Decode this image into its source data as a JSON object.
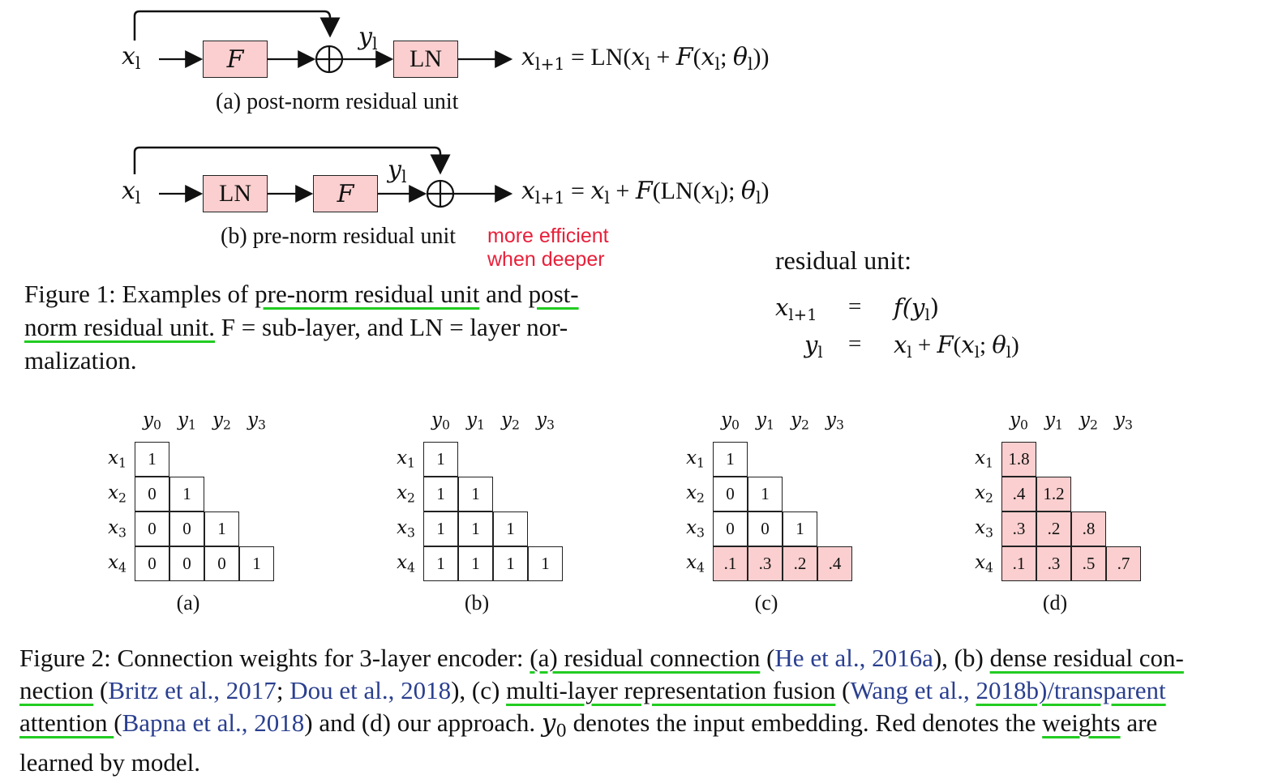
{
  "fig1": {
    "a": {
      "input": "x",
      "input_sub": "l",
      "box1": "F",
      "plus": "⊕",
      "y_label": "y",
      "y_sub": "l",
      "box2": "LN",
      "eq_lhs": "x",
      "eq_lhs_sub": "l+1",
      "eq_rhs": "= LN(x",
      "eq_rhs2": " + F(x",
      "eq_rhs3": "; θ",
      "eq_rhs4": "))",
      "caption": "(a) post-norm residual unit"
    },
    "b": {
      "input": "x",
      "input_sub": "l",
      "box1": "LN",
      "box2": "F",
      "plus": "⊕",
      "y_label": "y",
      "y_sub": "l",
      "eq_lhs": "x",
      "eq_lhs_sub": "l+1",
      "eq_rhs": "= x",
      "eq_rhs2": " + F(LN(x",
      "eq_rhs3": "); θ",
      "eq_rhs4": ")",
      "caption": "(b) pre-norm residual unit",
      "note_line1": "more efficient",
      "note_line2": "when deeper"
    },
    "caption": {
      "p1": "Figure 1: Examples of ",
      "u1": "pre-norm residual unit",
      "p2": " and ",
      "u2a": "post-",
      "u2b": "norm residual unit.",
      "p3": " F = sub-layer, and LN = layer nor-",
      "p4": "malization."
    }
  },
  "residual_unit": {
    "title": "residual unit:",
    "r1_lhs": "x",
    "r1_lhs_sub": "l+1",
    "r1_eq": "=",
    "r1_rhs": "f(y",
    "r1_rhs_end": ")",
    "r2_lhs": "y",
    "r2_lhs_sub": "l",
    "r2_eq": "=",
    "r2_rhs": "x",
    "r2_rhs2": " + F(x",
    "r2_rhs3": "; θ",
    "r2_rhs4": ")",
    "l": "l"
  },
  "fig2": {
    "col_labels": [
      "y",
      "y",
      "y",
      "y"
    ],
    "col_subs": [
      "0",
      "1",
      "2",
      "3"
    ],
    "row_labels": [
      "x",
      "x",
      "x",
      "x"
    ],
    "row_subs": [
      "1",
      "2",
      "3",
      "4"
    ],
    "grids": [
      {
        "caption": "(a)",
        "rows": [
          [
            "1"
          ],
          [
            "0",
            "1"
          ],
          [
            "0",
            "0",
            "1"
          ],
          [
            "0",
            "0",
            "0",
            "1"
          ]
        ],
        "red": [
          [
            0
          ],
          [
            0,
            0
          ],
          [
            0,
            0,
            0
          ],
          [
            0,
            0,
            0,
            0
          ]
        ]
      },
      {
        "caption": "(b)",
        "rows": [
          [
            "1"
          ],
          [
            "1",
            "1"
          ],
          [
            "1",
            "1",
            "1"
          ],
          [
            "1",
            "1",
            "1",
            "1"
          ]
        ],
        "red": [
          [
            0
          ],
          [
            0,
            0
          ],
          [
            0,
            0,
            0
          ],
          [
            0,
            0,
            0,
            0
          ]
        ]
      },
      {
        "caption": "(c)",
        "rows": [
          [
            "1"
          ],
          [
            "0",
            "1"
          ],
          [
            "0",
            "0",
            "1"
          ],
          [
            ".1",
            ".3",
            ".2",
            ".4"
          ]
        ],
        "red": [
          [
            0
          ],
          [
            0,
            0
          ],
          [
            0,
            0,
            0
          ],
          [
            1,
            1,
            1,
            1
          ]
        ]
      },
      {
        "caption": "(d)",
        "rows": [
          [
            "1.8"
          ],
          [
            ".4",
            "1.2"
          ],
          [
            ".3",
            ".2",
            ".8"
          ],
          [
            ".1",
            ".3",
            ".5",
            ".7"
          ]
        ],
        "red": [
          [
            1
          ],
          [
            1,
            1
          ],
          [
            1,
            1,
            1
          ],
          [
            1,
            1,
            1,
            1
          ]
        ]
      }
    ],
    "caption": {
      "l1a": "Figure 2: Connection weights for 3-layer encoder: ",
      "l1u1": "(a) residual connection",
      "l1b": " (",
      "l1c1": "He et al., 2016a",
      "l1d": "), (b) ",
      "l1u2": "dense residual con-",
      "l2u": "nection",
      "l2a": " (",
      "l2c1": "Britz et al., 2017",
      "l2b": "; ",
      "l2c2": "Dou et al., 2018",
      "l2d": "), (c) ",
      "l2u2": "multi-layer representation fusion",
      "l2e": " (",
      "l2c3": "Wang et al., ",
      "l2c4": "2018b)/transparent",
      "l3u": "attention ",
      "l3a": "(",
      "l3c": "Bapna et al., 2018",
      "l3b": ") and (d) our approach. ",
      "l3y": "y",
      "l3ysub": "0",
      "l3d": " denotes the input embedding. Red denotes the ",
      "l3u2": "weights",
      "l3e": " are",
      "l4": "learned by model."
    }
  }
}
